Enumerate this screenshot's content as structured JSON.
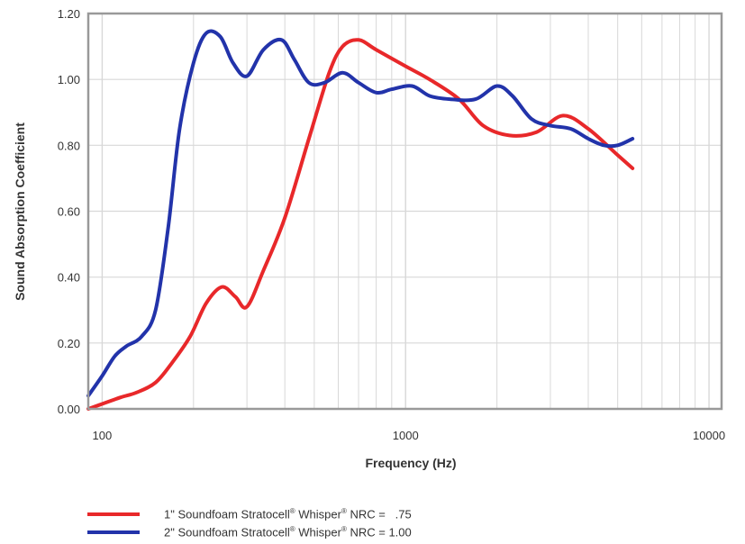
{
  "chart_data": {
    "type": "line",
    "xlabel": "Frequency (Hz)",
    "ylabel": "Sound Absorption Coefficient",
    "x_scale": "log",
    "xlim": [
      90,
      11000
    ],
    "ylim": [
      0,
      1.2
    ],
    "x_ticks": [
      100,
      1000,
      10000
    ],
    "x_tick_labels": [
      "100",
      "1000",
      "10000"
    ],
    "y_ticks": [
      0,
      0.2,
      0.4,
      0.6,
      0.8,
      1.0,
      1.2
    ],
    "y_tick_labels": [
      "0.00",
      "0.20",
      "0.40",
      "0.60",
      "0.80",
      "1.00",
      "1.20"
    ],
    "grid": true,
    "series": [
      {
        "name": "1\" Soundfoam Stratocell® Whisper® NRC = .75",
        "color": "#e8282a",
        "x": [
          90,
          100,
          115,
          130,
          150,
          170,
          195,
          220,
          248,
          275,
          300,
          340,
          400,
          480,
          560,
          620,
          700,
          800,
          1000,
          1200,
          1500,
          1800,
          2200,
          2700,
          3300,
          4000,
          5000,
          5600
        ],
        "y": [
          0.0,
          0.015,
          0.035,
          0.05,
          0.08,
          0.14,
          0.22,
          0.32,
          0.37,
          0.34,
          0.31,
          0.42,
          0.58,
          0.82,
          1.02,
          1.1,
          1.12,
          1.09,
          1.04,
          1.0,
          0.94,
          0.86,
          0.83,
          0.84,
          0.89,
          0.85,
          0.77,
          0.73
        ]
      },
      {
        "name": "2\" Soundfoam Stratocell® Whisper® NRC = 1.00",
        "color": "#2233aa",
        "x": [
          90,
          100,
          110,
          120,
          135,
          150,
          165,
          180,
          200,
          220,
          245,
          270,
          300,
          340,
          390,
          430,
          480,
          540,
          620,
          700,
          800,
          900,
          1050,
          1200,
          1400,
          1700,
          2000,
          2250,
          2600,
          3000,
          3500,
          4000,
          4500,
          5000,
          5600
        ],
        "y": [
          0.04,
          0.1,
          0.16,
          0.19,
          0.22,
          0.3,
          0.55,
          0.85,
          1.05,
          1.14,
          1.13,
          1.05,
          1.01,
          1.09,
          1.12,
          1.06,
          0.99,
          0.99,
          1.02,
          0.99,
          0.96,
          0.97,
          0.98,
          0.95,
          0.94,
          0.94,
          0.98,
          0.95,
          0.88,
          0.86,
          0.85,
          0.82,
          0.8,
          0.8,
          0.82
        ]
      }
    ]
  },
  "legend": {
    "items": [
      {
        "prefix": "1\" Soundfoam Stratocell",
        "mid": " Whisper",
        "suffix": " NRC =   .75",
        "sup": "®",
        "color": "#e8282a"
      },
      {
        "prefix": "2\" Soundfoam Stratocell",
        "mid": " Whisper",
        "suffix": " NRC = 1.00",
        "sup": "®",
        "color": "#2233aa"
      }
    ]
  },
  "colors": {
    "grid": "#d8d8d8",
    "frame": "#999999",
    "text": "#333333"
  }
}
